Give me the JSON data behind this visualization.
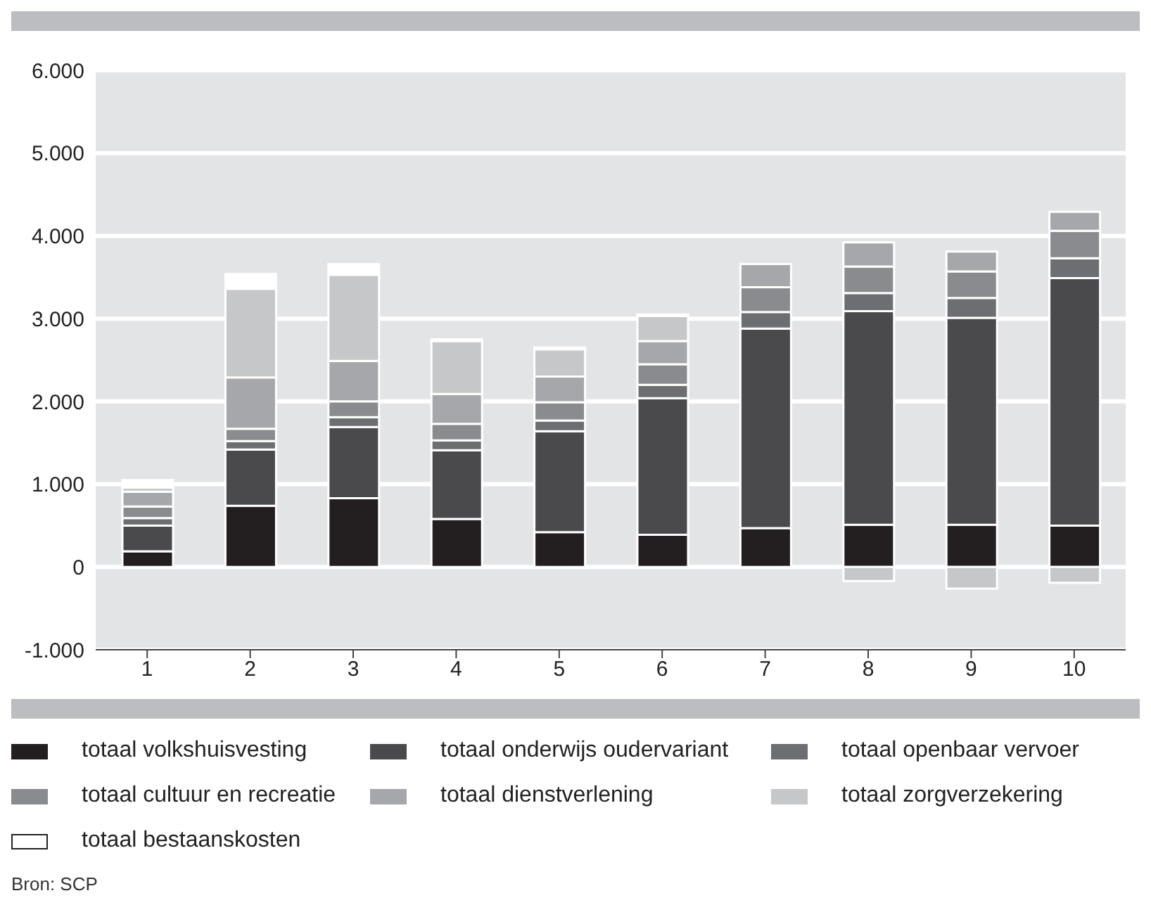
{
  "chart_data": {
    "type": "bar",
    "stacked": true,
    "categories": [
      "1",
      "2",
      "3",
      "4",
      "5",
      "6",
      "7",
      "8",
      "9",
      "10"
    ],
    "series": [
      {
        "name": "totaal volkshuisvesting",
        "color": "#231f20",
        "values": [
          190,
          740,
          830,
          580,
          420,
          390,
          470,
          510,
          510,
          500
        ]
      },
      {
        "name": "totaal onderwijs oudervariant",
        "color": "#4a4a4c",
        "values": [
          310,
          680,
          860,
          830,
          1220,
          1650,
          2410,
          2580,
          2500,
          2990
        ]
      },
      {
        "name": "totaal openbaar vervoer",
        "color": "#6d6e71",
        "values": [
          90,
          100,
          120,
          120,
          130,
          160,
          200,
          220,
          240,
          240
        ]
      },
      {
        "name": "totaal cultuur en recreatie",
        "color": "#8a8b8e",
        "values": [
          140,
          150,
          190,
          200,
          220,
          250,
          300,
          320,
          320,
          330
        ]
      },
      {
        "name": "totaal dienstverlening",
        "color": "#a6a7aa",
        "values": [
          180,
          620,
          490,
          360,
          310,
          280,
          280,
          290,
          240,
          230
        ]
      },
      {
        "name": "totaal zorgverzekering",
        "color": "#c6c7c9",
        "values": [
          50,
          1070,
          1040,
          640,
          330,
          300,
          0,
          -170,
          -260,
          -190
        ]
      },
      {
        "name": "totaal bestaanskosten",
        "color": "#ffffff",
        "values": [
          90,
          180,
          130,
          20,
          20,
          20,
          0,
          0,
          0,
          0
        ]
      }
    ],
    "ylim": [
      -1000,
      6000
    ],
    "yticks": [
      {
        "value": -1000,
        "label": "-1.000"
      },
      0,
      {
        "value": 1000,
        "label": "1.000"
      },
      {
        "value": 2000,
        "label": "2.000"
      },
      {
        "value": 3000,
        "label": "3.000"
      },
      {
        "value": 4000,
        "label": "4.000"
      },
      {
        "value": 5000,
        "label": "5.000"
      },
      {
        "value": 6000,
        "label": "6.000"
      }
    ],
    "grid": "y",
    "legend": "bottom",
    "annotations": [
      "Bron: SCP"
    ]
  }
}
